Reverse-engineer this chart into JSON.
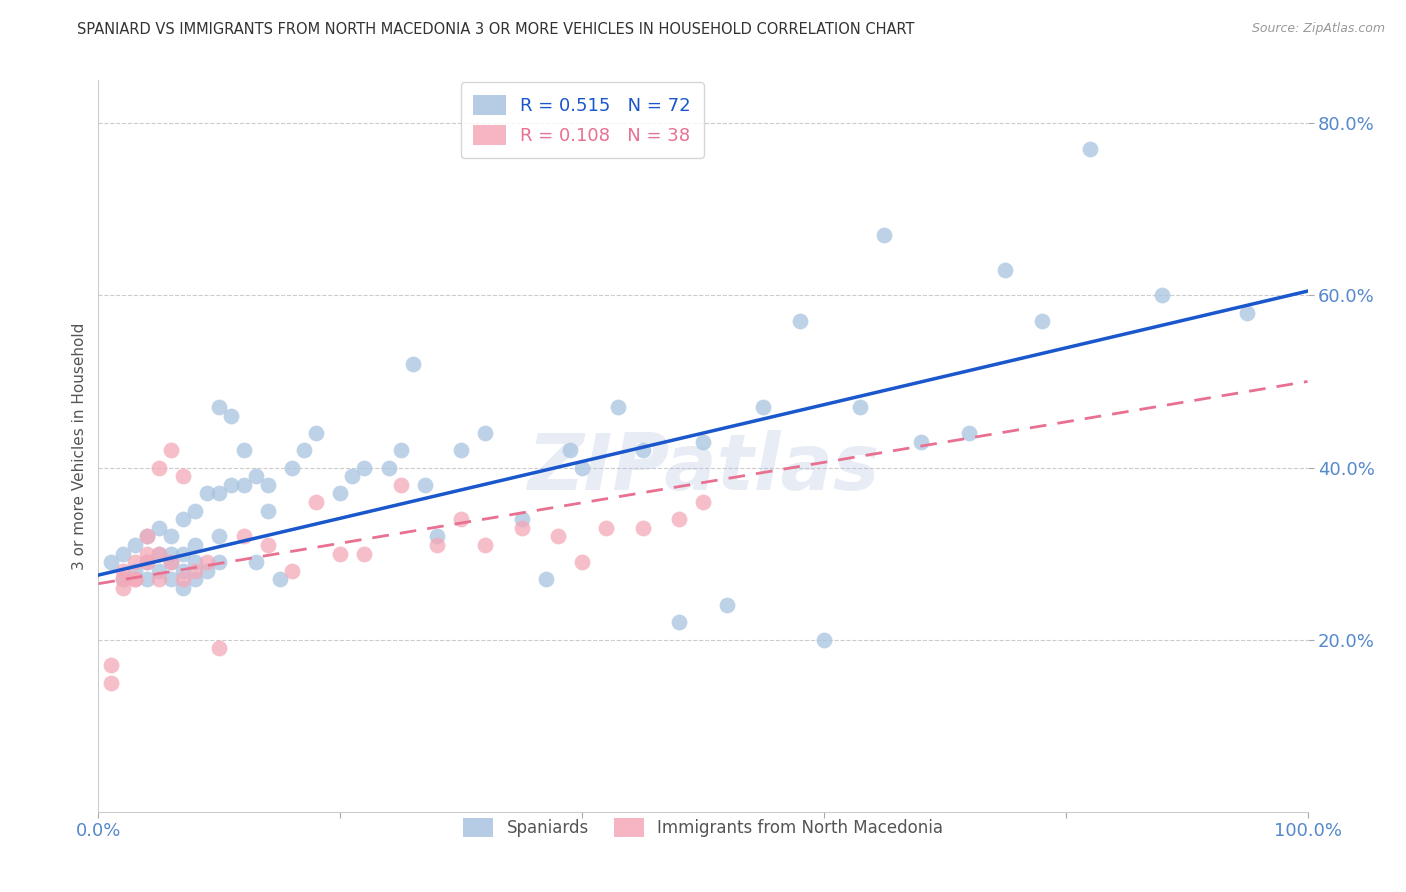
{
  "title": "SPANIARD VS IMMIGRANTS FROM NORTH MACEDONIA 3 OR MORE VEHICLES IN HOUSEHOLD CORRELATION CHART",
  "source": "Source: ZipAtlas.com",
  "ylabel": "3 or more Vehicles in Household",
  "xlim": [
    0.0,
    1.0
  ],
  "ylim": [
    0.0,
    0.85
  ],
  "xticks": [
    0.0,
    0.2,
    0.4,
    0.6,
    0.8,
    1.0
  ],
  "xticklabels": [
    "0.0%",
    "",
    "",
    "",
    "",
    "100.0%"
  ],
  "yticks": [
    0.2,
    0.4,
    0.6,
    0.8
  ],
  "yticklabels": [
    "20.0%",
    "40.0%",
    "60.0%",
    "80.0%"
  ],
  "blue_R": 0.515,
  "blue_N": 72,
  "pink_R": 0.108,
  "pink_N": 38,
  "blue_color": "#A8C4E0",
  "pink_color": "#F4A8B8",
  "blue_line_color": "#1A56CC",
  "pink_line_color": "#E87090",
  "watermark": "ZIPatlas",
  "legend_label_blue": "Spaniards",
  "legend_label_pink": "Immigrants from North Macedonia",
  "blue_scatter_x": [
    0.01,
    0.02,
    0.02,
    0.03,
    0.03,
    0.04,
    0.04,
    0.04,
    0.05,
    0.05,
    0.05,
    0.06,
    0.06,
    0.06,
    0.06,
    0.07,
    0.07,
    0.07,
    0.07,
    0.08,
    0.08,
    0.08,
    0.08,
    0.09,
    0.09,
    0.1,
    0.1,
    0.1,
    0.1,
    0.11,
    0.11,
    0.12,
    0.12,
    0.13,
    0.13,
    0.14,
    0.14,
    0.15,
    0.16,
    0.17,
    0.18,
    0.2,
    0.21,
    0.22,
    0.24,
    0.25,
    0.26,
    0.27,
    0.28,
    0.3,
    0.32,
    0.35,
    0.37,
    0.39,
    0.4,
    0.43,
    0.45,
    0.48,
    0.5,
    0.52,
    0.55,
    0.58,
    0.6,
    0.63,
    0.65,
    0.68,
    0.72,
    0.75,
    0.78,
    0.82,
    0.88,
    0.95
  ],
  "blue_scatter_y": [
    0.29,
    0.3,
    0.27,
    0.28,
    0.31,
    0.27,
    0.29,
    0.32,
    0.28,
    0.3,
    0.33,
    0.27,
    0.29,
    0.3,
    0.32,
    0.26,
    0.28,
    0.3,
    0.34,
    0.27,
    0.29,
    0.31,
    0.35,
    0.28,
    0.37,
    0.29,
    0.32,
    0.37,
    0.47,
    0.38,
    0.46,
    0.38,
    0.42,
    0.29,
    0.39,
    0.35,
    0.38,
    0.27,
    0.4,
    0.42,
    0.44,
    0.37,
    0.39,
    0.4,
    0.4,
    0.42,
    0.52,
    0.38,
    0.32,
    0.42,
    0.44,
    0.34,
    0.27,
    0.42,
    0.4,
    0.47,
    0.42,
    0.22,
    0.43,
    0.24,
    0.47,
    0.57,
    0.2,
    0.47,
    0.67,
    0.43,
    0.44,
    0.63,
    0.57,
    0.77,
    0.6,
    0.58
  ],
  "pink_scatter_x": [
    0.01,
    0.01,
    0.02,
    0.02,
    0.02,
    0.03,
    0.03,
    0.03,
    0.04,
    0.04,
    0.04,
    0.05,
    0.05,
    0.05,
    0.06,
    0.06,
    0.07,
    0.07,
    0.08,
    0.09,
    0.1,
    0.12,
    0.14,
    0.16,
    0.18,
    0.2,
    0.22,
    0.25,
    0.28,
    0.3,
    0.32,
    0.35,
    0.38,
    0.4,
    0.42,
    0.45,
    0.48,
    0.5
  ],
  "pink_scatter_y": [
    0.17,
    0.15,
    0.27,
    0.26,
    0.28,
    0.27,
    0.29,
    0.27,
    0.3,
    0.29,
    0.32,
    0.3,
    0.27,
    0.4,
    0.29,
    0.42,
    0.39,
    0.27,
    0.28,
    0.29,
    0.19,
    0.32,
    0.31,
    0.28,
    0.36,
    0.3,
    0.3,
    0.38,
    0.31,
    0.34,
    0.31,
    0.33,
    0.32,
    0.29,
    0.33,
    0.33,
    0.34,
    0.36
  ],
  "grid_color": "#CCCCCC",
  "background_color": "#FFFFFF",
  "tick_color": "#5588CC",
  "blue_line_x0": 0.0,
  "blue_line_y0": 0.275,
  "blue_line_x1": 1.0,
  "blue_line_y1": 0.605,
  "pink_line_x0": 0.0,
  "pink_line_y0": 0.265,
  "pink_line_x1": 1.0,
  "pink_line_y1": 0.5
}
